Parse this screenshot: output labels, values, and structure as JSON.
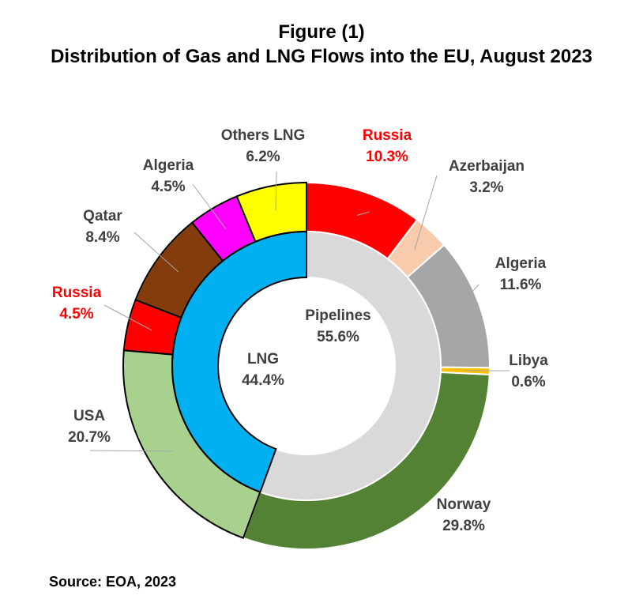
{
  "title": {
    "line1": "Figure (1)",
    "line2": "Distribution of Gas and LNG Flows into the EU, August 2023"
  },
  "source": "Source: EOA, 2023",
  "chart_data": {
    "type": "pie",
    "variant": "nested-donut",
    "inner_ring": [
      {
        "name": "Pipelines",
        "value": 55.6,
        "label": "55.6%",
        "color": "#D9D9D9",
        "text_color": "#404040"
      },
      {
        "name": "LNG",
        "value": 44.4,
        "label": "44.4%",
        "color": "#00B0F0",
        "text_color": "#404040"
      }
    ],
    "outer_ring": [
      {
        "name": "Russia",
        "value": 10.3,
        "label": "10.3%",
        "group": "Pipelines",
        "color": "#FF0000",
        "text_color": "#FF0000"
      },
      {
        "name": "Azerbaijan",
        "value": 3.2,
        "label": "3.2%",
        "group": "Pipelines",
        "color": "#F8CBAD",
        "text_color": "#404040"
      },
      {
        "name": "Algeria",
        "value": 11.6,
        "label": "11.6%",
        "group": "Pipelines",
        "color": "#A6A6A6",
        "text_color": "#404040"
      },
      {
        "name": "Libya",
        "value": 0.6,
        "label": "0.6%",
        "group": "Pipelines",
        "color": "#FFC000",
        "text_color": "#404040"
      },
      {
        "name": "Norway",
        "value": 29.8,
        "label": "29.8%",
        "group": "Pipelines",
        "color": "#548235",
        "text_color": "#404040"
      },
      {
        "name": "USA",
        "value": 20.7,
        "label": "20.7%",
        "group": "LNG",
        "color": "#A9D18E",
        "text_color": "#404040"
      },
      {
        "name": "Russia",
        "value": 4.5,
        "label": "4.5%",
        "group": "LNG",
        "color": "#FF0000",
        "text_color": "#FF0000"
      },
      {
        "name": "Qatar",
        "value": 8.4,
        "label": "8.4%",
        "group": "LNG",
        "color": "#843C0C",
        "text_color": "#404040"
      },
      {
        "name": "Algeria",
        "value": 4.5,
        "label": "4.5%",
        "group": "LNG",
        "color": "#FF00FF",
        "text_color": "#404040"
      },
      {
        "name": "Others LNG",
        "value": 6.2,
        "label": "6.2%",
        "group": "LNG",
        "color": "#FFFF00",
        "text_color": "#404040"
      }
    ]
  }
}
